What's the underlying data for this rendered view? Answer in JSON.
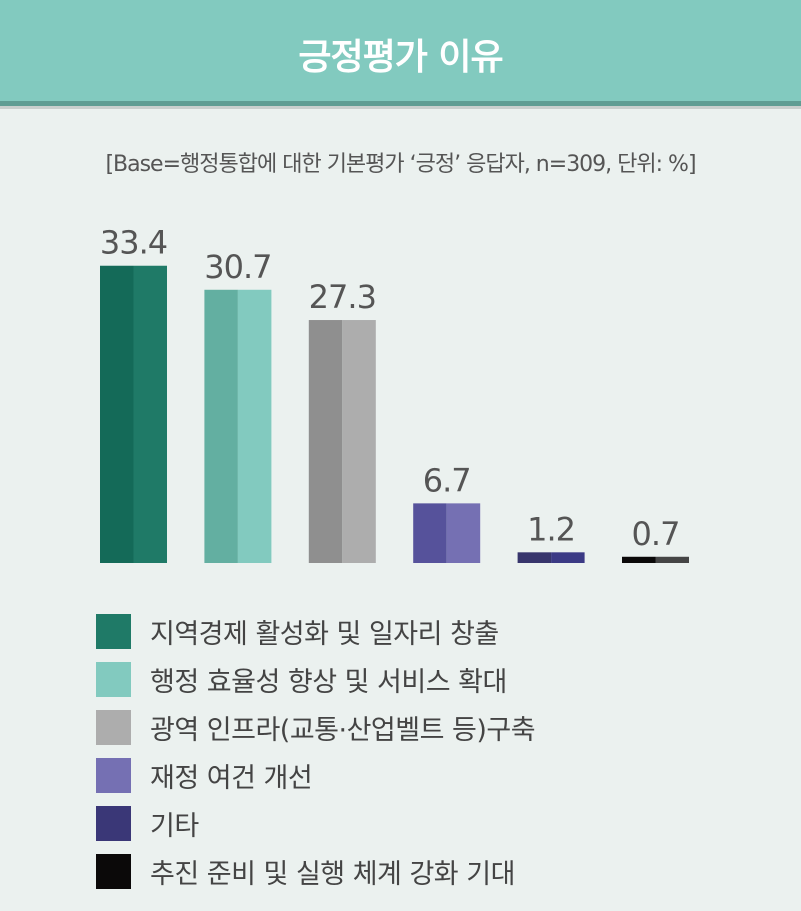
{
  "header": {
    "title": "긍정평가 이유"
  },
  "chart_data": {
    "type": "bar",
    "title": "긍정평가 이유",
    "subtitle": "[Base=행정통합에 대한 기본평가 ‘긍정’ 응답자, n=309, 단위: %]",
    "categories": [
      "지역경제 활성화 및 일자리 창출",
      "행정 효율성 향상 및 서비스 확대",
      "광역 인프라(교통·산업벨트 등)구축",
      "재정 여건 개선",
      "기타",
      "추진 준비 및 실행 체계 강화 기대"
    ],
    "values": [
      33.4,
      30.7,
      27.3,
      6.7,
      1.2,
      0.7
    ],
    "value_labels": [
      "33.4",
      "30.7",
      "27.3",
      "6.7",
      "1.2",
      "0.7"
    ],
    "colors": [
      "#1f7a67",
      "#82cabf",
      "#adadad",
      "#7570b3",
      "#3a3777",
      "#0b0909"
    ],
    "colors_dark": [
      "#146a58",
      "#63afa1",
      "#8f8f8f",
      "#56529b",
      "#37356c",
      "#0b0909"
    ],
    "colors_light": [
      "#1f7a67",
      "#82cabf",
      "#adadad",
      "#7570b3",
      "#3b3a85",
      "#454545"
    ],
    "ylim": [
      0,
      35
    ],
    "grid": false,
    "legend": "bottom-left"
  }
}
